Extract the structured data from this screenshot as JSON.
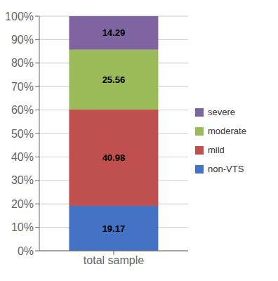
{
  "chart_data": {
    "type": "bar",
    "stacked": true,
    "categories": [
      "total sample"
    ],
    "series": [
      {
        "name": "non-VTS",
        "color": "#4472C4",
        "values": [
          19.17
        ]
      },
      {
        "name": "mild",
        "color": "#C0504D",
        "values": [
          40.98
        ]
      },
      {
        "name": "moderate",
        "color": "#9BBB59",
        "values": [
          25.56
        ]
      },
      {
        "name": "severe",
        "color": "#8064A2",
        "values": [
          14.29
        ]
      }
    ],
    "ylim": [
      0,
      100
    ],
    "yticks": [
      {
        "value": 0,
        "label": "0%"
      },
      {
        "value": 10,
        "label": "10%"
      },
      {
        "value": 20,
        "label": "20%"
      },
      {
        "value": 30,
        "label": "30%"
      },
      {
        "value": 40,
        "label": "40%"
      },
      {
        "value": 50,
        "label": "50%"
      },
      {
        "value": 60,
        "label": "60%"
      },
      {
        "value": 70,
        "label": "70%"
      },
      {
        "value": 80,
        "label": "80%"
      },
      {
        "value": 90,
        "label": "90%"
      },
      {
        "value": 100,
        "label": "100%"
      }
    ],
    "grid": true,
    "legend": "right",
    "data_labels": true
  }
}
